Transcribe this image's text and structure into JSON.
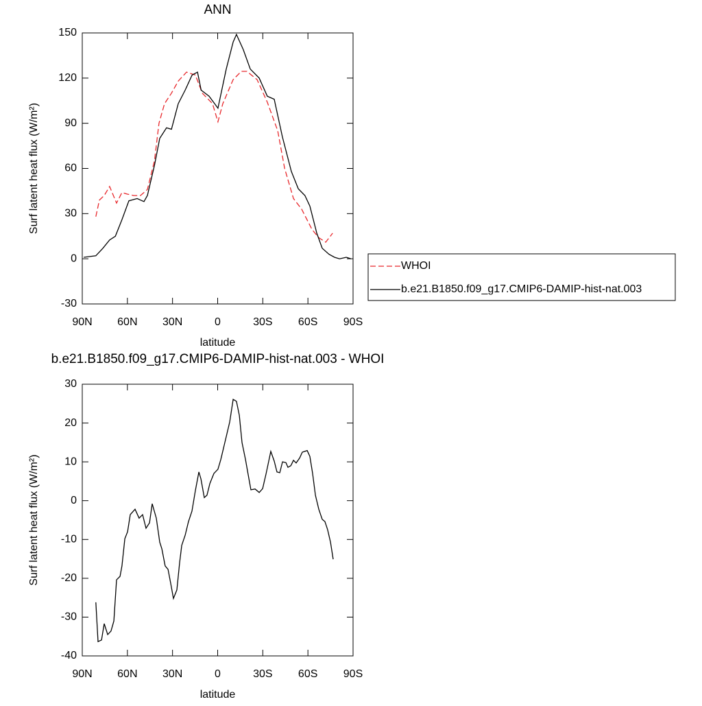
{
  "chart_data": [
    {
      "type": "line",
      "title": "ANN",
      "x_label": "latitude",
      "y_label": "Surf latent heat flux (W/m²)",
      "xlim": [
        90,
        -90
      ],
      "xticks": [
        {
          "value": 90,
          "label": "90N"
        },
        {
          "value": 60,
          "label": "60N"
        },
        {
          "value": 30,
          "label": "30N"
        },
        0,
        {
          "value": -30,
          "label": "30S"
        },
        {
          "value": -60,
          "label": "60S"
        },
        {
          "value": -90,
          "label": "90S"
        }
      ],
      "ylim": [
        -30,
        150
      ],
      "yticks": [
        -30,
        0,
        30,
        60,
        90,
        120,
        150
      ],
      "legend": "right",
      "series": [
        {
          "name": "WHOI",
          "color": "#e8262a",
          "dash": true,
          "x": [
            81,
            78.6,
            75.4,
            71.8,
            67.2,
            63.6,
            60.4,
            55.8,
            51.3,
            46.7,
            42,
            39,
            35.3,
            30.7,
            26.2,
            20.7,
            14.8,
            10.2,
            3.4,
            -0.2,
            -3.4,
            -10.3,
            -15.7,
            -19.4,
            -26.2,
            -33,
            -39.9,
            -44.5,
            -50.4,
            -55.8,
            -62.7,
            -67.2,
            -71.8,
            -76.4
          ],
          "values": [
            28,
            39,
            42,
            48,
            37,
            44,
            43,
            42,
            42,
            46,
            65,
            90,
            103,
            110,
            118,
            124,
            122,
            110,
            103,
            91,
            103,
            119,
            124.5,
            124.5,
            119,
            104,
            85,
            60,
            40,
            33,
            19.5,
            14,
            11,
            17
          ]
        },
        {
          "name": "b.e21.B1850.f09_g17.CMIP6-DAMIP-hist-nat.003",
          "color": "#000000",
          "dash": false,
          "x": [
            89,
            81,
            76.3,
            71.8,
            68,
            63.6,
            59,
            53.5,
            49,
            46.7,
            42,
            38.5,
            34,
            30.7,
            26.2,
            21.6,
            17,
            13.4,
            11,
            5.7,
            2,
            -0.2,
            -5.7,
            -10.3,
            -12.5,
            -17,
            -21.7,
            -27.6,
            -33,
            -37.6,
            -43,
            -49,
            -53.6,
            -58,
            -61.3,
            -65.9,
            -69.5,
            -74,
            -77.7,
            -81,
            -85.5,
            -88.7
          ],
          "values": [
            1,
            2,
            7,
            12.5,
            15,
            26,
            38.5,
            40,
            38,
            42,
            62,
            80,
            87,
            86,
            103,
            112,
            122,
            124,
            112,
            108,
            103,
            100,
            126,
            144,
            149,
            139,
            126,
            120,
            108,
            106,
            81,
            58,
            46.5,
            42,
            35,
            17,
            7,
            3,
            1,
            0,
            1,
            0
          ]
        }
      ]
    },
    {
      "type": "line",
      "title": "b.e21.B1850.f09_g17.CMIP6-DAMIP-hist-nat.003 - WHOI",
      "x_label": "latitude",
      "y_label": "Surf latent heat flux (W/m²)",
      "xlim": [
        90,
        -90
      ],
      "xticks": [
        {
          "value": 90,
          "label": "90N"
        },
        {
          "value": 60,
          "label": "60N"
        },
        {
          "value": 30,
          "label": "30N"
        },
        0,
        {
          "value": -30,
          "label": "30S"
        },
        {
          "value": -60,
          "label": "60S"
        },
        {
          "value": -90,
          "label": "90S"
        }
      ],
      "ylim": [
        -40,
        30
      ],
      "yticks": [
        -40,
        -30,
        -20,
        -10,
        0,
        10,
        20,
        30
      ],
      "series": [
        {
          "color": "#000000",
          "dash": false,
          "x": [
            81,
            79.5,
            77.2,
            75.4,
            73.1,
            70.9,
            69,
            67.2,
            64.9,
            63.6,
            61.7,
            59.9,
            58.1,
            54.9,
            52.2,
            49.9,
            47.6,
            45.3,
            43.5,
            40.8,
            38.5,
            37.1,
            34.9,
            33,
            31.2,
            29.4,
            27.1,
            25.3,
            23.9,
            21.6,
            19.4,
            17.1,
            14.8,
            12.5,
            11.1,
            8.9,
            7.1,
            5.2,
            2.5,
            -0.2,
            -2.1,
            -4.8,
            -8,
            -10.3,
            -12.5,
            -14.4,
            -16.2,
            -18.5,
            -20.3,
            -22.1,
            -24.9,
            -27.6,
            -29.9,
            -32.2,
            -35.3,
            -37.6,
            -39.4,
            -41.3,
            -43.1,
            -45.4,
            -46.7,
            -48.6,
            -50.4,
            -52.2,
            -54.5,
            -56.3,
            -59.5,
            -61.3,
            -63.1,
            -65,
            -67.2,
            -69.5,
            -71.3,
            -73.1,
            -75,
            -76.8
          ],
          "values": [
            -26.2,
            -36.3,
            -35.9,
            -31.7,
            -34.5,
            -33.6,
            -31,
            -20.4,
            -19.5,
            -16.8,
            -9.8,
            -8,
            -3.6,
            -2.2,
            -4.5,
            -3.6,
            -7.1,
            -5.7,
            -0.8,
            -4.5,
            -10.7,
            -12.4,
            -16.8,
            -17.7,
            -21.3,
            -25.2,
            -23,
            -16,
            -11.5,
            -8.9,
            -5.4,
            -2.7,
            2.6,
            7.4,
            5.6,
            0.8,
            1.4,
            4.4,
            7,
            8.1,
            10.6,
            15,
            20.3,
            26.1,
            25.6,
            22,
            15,
            10.6,
            6.7,
            2.8,
            3,
            2.1,
            3.1,
            7,
            12.7,
            10.2,
            7.4,
            7.2,
            10,
            9.8,
            8.6,
            9,
            10.4,
            9.7,
            11,
            12.5,
            12.9,
            11.4,
            7,
            1.4,
            -2.2,
            -4.8,
            -5.4,
            -7.5,
            -10.7,
            -15.1
          ]
        }
      ]
    }
  ]
}
